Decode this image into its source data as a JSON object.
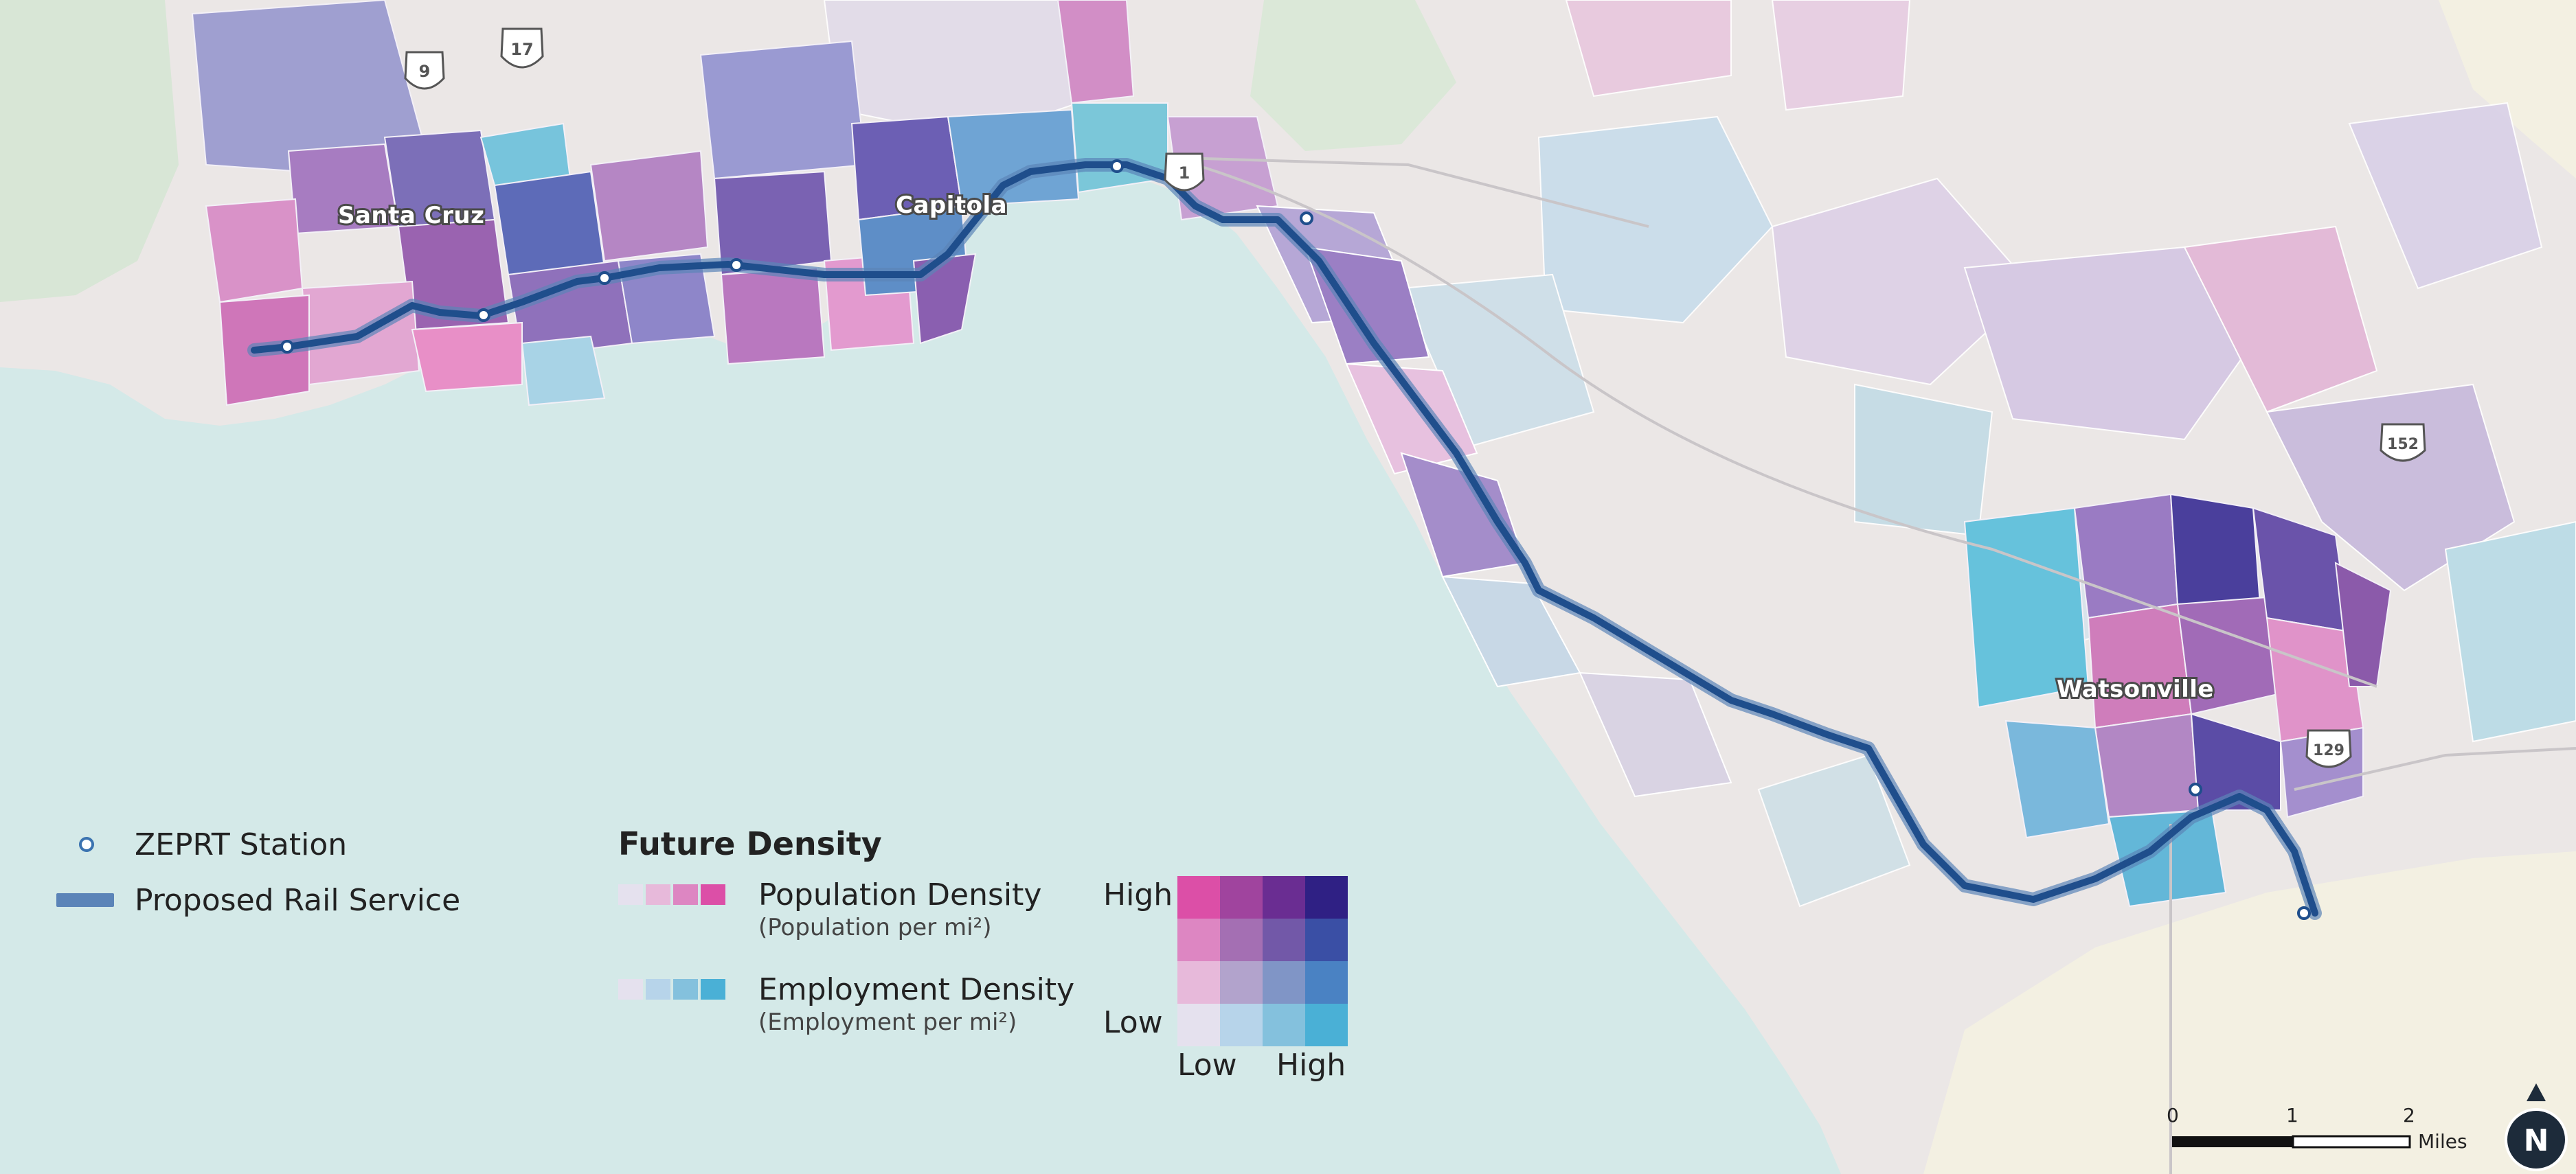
{
  "map": {
    "towns": [
      {
        "id": "santa-cruz",
        "label": "Santa Cruz"
      },
      {
        "id": "capitola",
        "label": "Capitola"
      },
      {
        "id": "watsonville",
        "label": "Watsonville"
      }
    ],
    "route_shields": [
      "9",
      "17",
      "1",
      "152",
      "129"
    ]
  },
  "legend": {
    "station_label": "ZEPRT Station",
    "rail_label": "Proposed Rail Service",
    "density_title": "Future Density",
    "population_label": "Population Density",
    "population_sub": "(Population per mi²)",
    "employment_label": "Employment Density",
    "employment_sub": "(Employment per mi²)",
    "matrix": {
      "high_label": "High",
      "low_label": "Low",
      "x_low_label": "Low",
      "x_high_label": "High",
      "colors": [
        [
          "#dc4fa7",
          "#a0449e",
          "#6a2d92",
          "#2f2084"
        ],
        [
          "#dd86c2",
          "#a46fb3",
          "#7258a8",
          "#3a4fa5"
        ],
        [
          "#e7b9da",
          "#b2a3cc",
          "#8095c6",
          "#4a82c3"
        ],
        [
          "#e5e1ee",
          "#b7d4ea",
          "#84c1dd",
          "#4ab0d6"
        ]
      ]
    },
    "population_swatches": [
      "#e5e1ee",
      "#e7b9da",
      "#dd86c2",
      "#dc4fa7"
    ],
    "employment_swatches": [
      "#e5e1ee",
      "#b7d4ea",
      "#84c1dd",
      "#4ab0d6"
    ]
  },
  "scale_bar": {
    "ticks": [
      "0",
      "1",
      "2"
    ],
    "unit": "Miles"
  },
  "north_arrow": {
    "label": "N"
  },
  "colors": {
    "ocean": "#d4e9e8",
    "land": "#ebe7e6",
    "rail": "#1f4e8c",
    "rail_casing": "#5b84b8"
  }
}
